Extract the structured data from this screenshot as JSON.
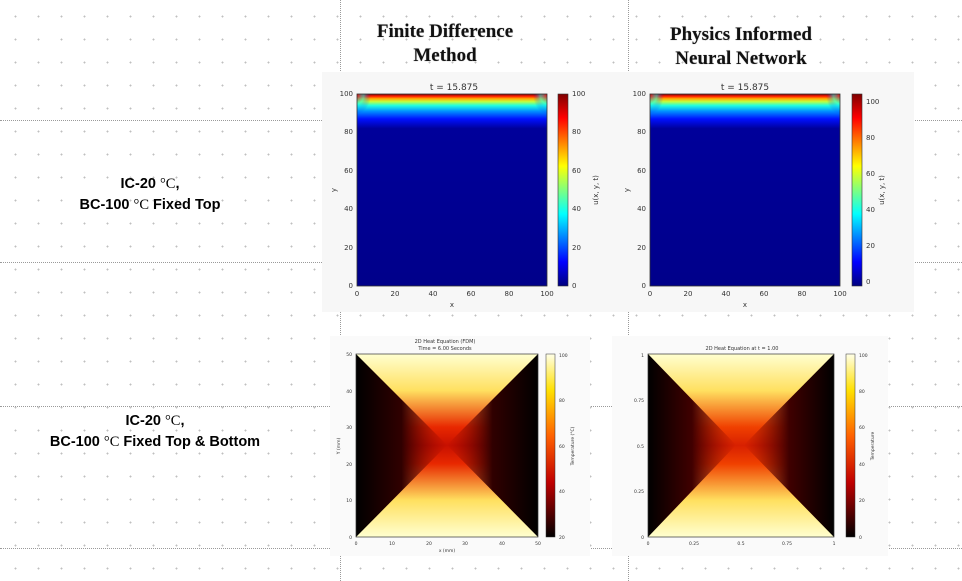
{
  "headers": {
    "fdm": [
      "Finite Difference",
      "Method"
    ],
    "pinn": [
      "Physics Informed",
      "Neural Network"
    ]
  },
  "rows": [
    {
      "label_line1": [
        "IC-20 ",
        "°C",
        ","
      ],
      "label_line2": [
        "BC-100 ",
        "°C",
        " Fixed Top"
      ]
    },
    {
      "label_line1": [
        "IC-20 ",
        "°C",
        ","
      ],
      "label_line2": [
        "BC-100 ",
        "°C",
        " Fixed Top & Bottom"
      ]
    }
  ],
  "top_plots": {
    "title": "t = 15.875",
    "xlabel": "x",
    "ylabel": "y",
    "colorbar_label": "u(x, y, t)",
    "x_ticks": [
      "0",
      "20",
      "40",
      "60",
      "80",
      "100"
    ],
    "y_ticks": [
      "0",
      "20",
      "40",
      "60",
      "80",
      "100"
    ],
    "fdm_cbar_ticks": [
      "0",
      "20",
      "40",
      "60",
      "80",
      "100"
    ],
    "pinn_cbar_ticks": [
      "0",
      "20",
      "40",
      "60",
      "80",
      "100"
    ]
  },
  "bottom_plots": {
    "fdm_title": [
      "2D Heat Equation (FDM)",
      "Time = 6.00 Seconds"
    ],
    "pinn_title": "2D Heat Equation at t = 1.00",
    "fdm_xlabel": "x (mm)",
    "fdm_ylabel": "Y (mm)",
    "fdm_cbar_label": "Temperature (°C)",
    "pinn_cbar_label": "Temperature",
    "fdm_x_ticks": [
      "0",
      "10",
      "20",
      "30",
      "40",
      "50"
    ],
    "fdm_y_ticks": [
      "0",
      "10",
      "20",
      "30",
      "40",
      "50"
    ],
    "fdm_cbar_ticks": [
      "20",
      "40",
      "60",
      "80",
      "100"
    ],
    "pinn_x_ticks": [
      "0",
      "0.25",
      "0.5",
      "0.75",
      "1"
    ],
    "pinn_y_ticks": [
      "0",
      "0.25",
      "0.5",
      "0.75",
      "1"
    ],
    "pinn_cbar_ticks": [
      "0",
      "20",
      "40",
      "60",
      "80",
      "100"
    ]
  },
  "colors": {
    "jet": [
      "#00007f",
      "#0000ff",
      "#007fff",
      "#00ffff",
      "#7fff7f",
      "#ffff00",
      "#ff7f00",
      "#ff0000",
      "#7f0000"
    ],
    "hot": [
      "#000000",
      "#7f0000",
      "#ff0000",
      "#ff8000",
      "#ffff00",
      "#ffffff"
    ]
  }
}
